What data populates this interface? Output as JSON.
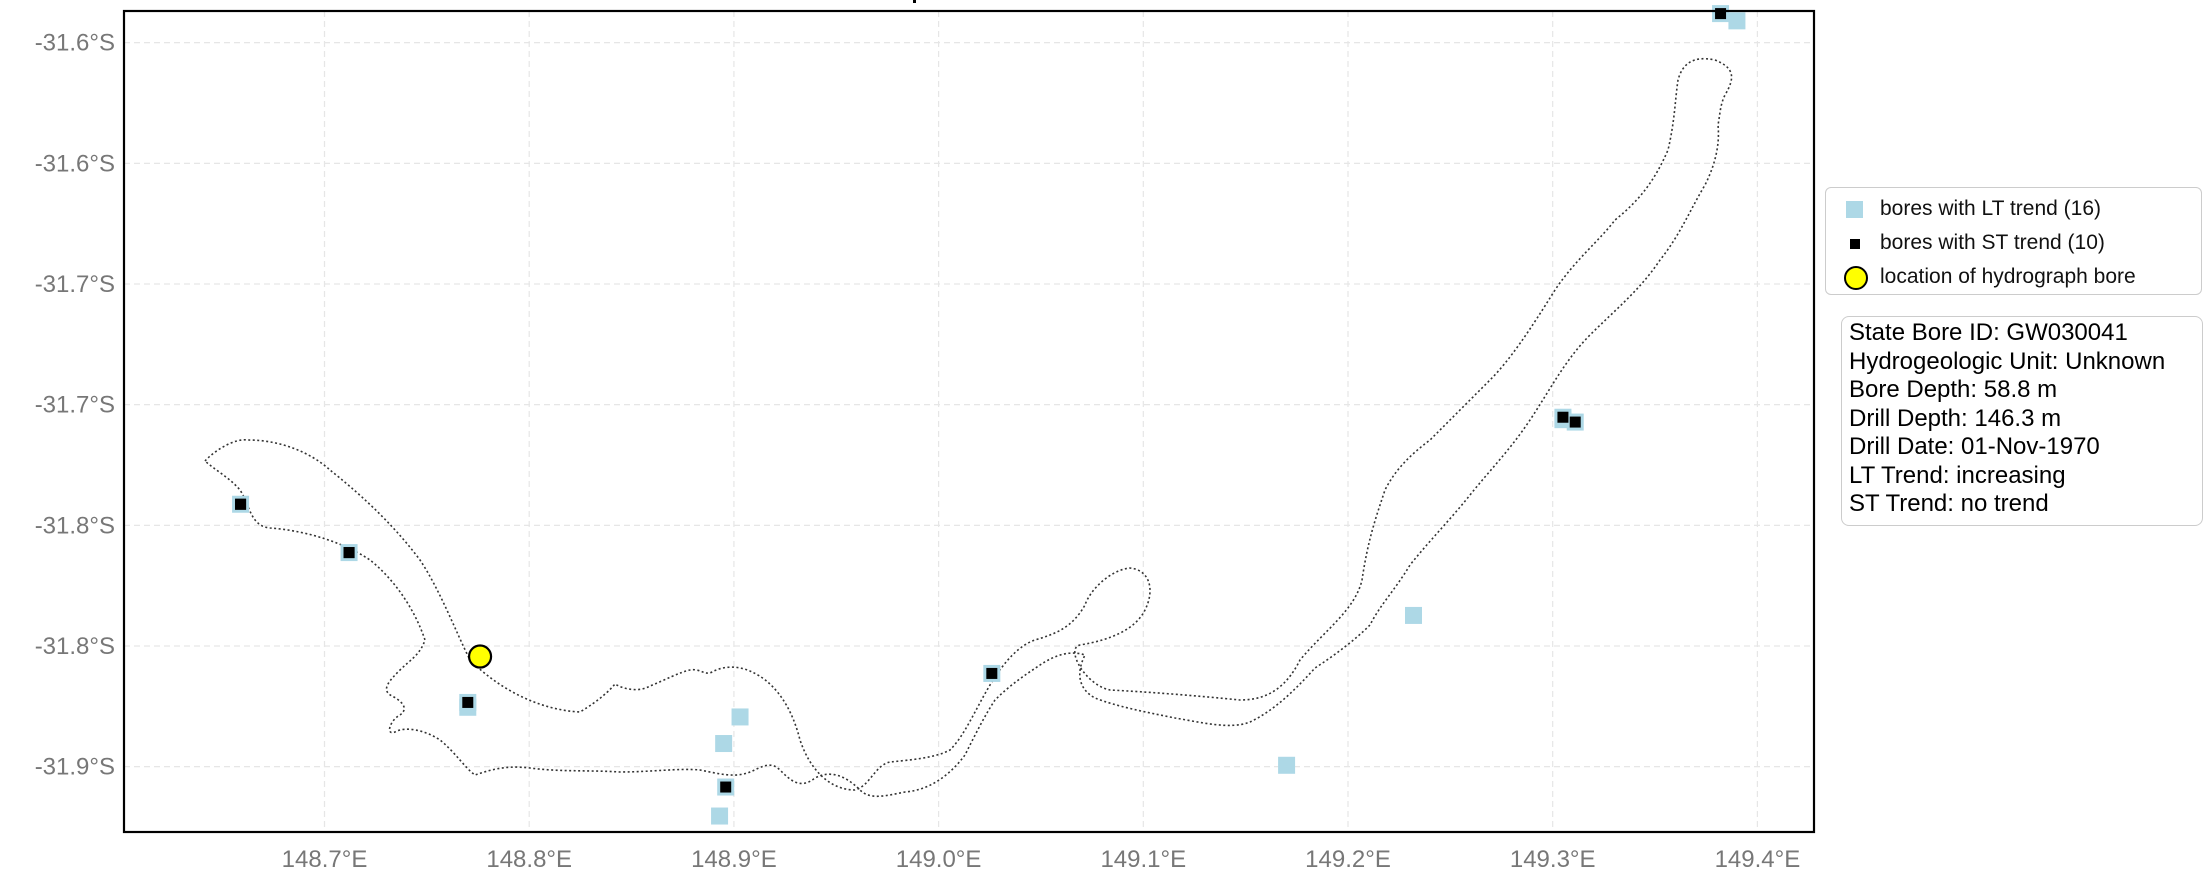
{
  "map": {
    "y_ticks": [
      "-31.6°S",
      "-31.6°S",
      "-31.7°S",
      "-31.7°S",
      "-31.8°S",
      "-31.8°S",
      "-31.9°S"
    ],
    "x_ticks": [
      "148.7°E",
      "148.8°E",
      "148.9°E",
      "149.0°E",
      "149.1°E",
      "149.2°E",
      "149.3°E",
      "149.4°E"
    ],
    "grid": true,
    "outline_style": "dotted",
    "colors": {
      "lt_marker": "#add8e6",
      "st_marker": "#000000",
      "hydrograph_marker": "#ffff00",
      "outline": "#333333",
      "grid": "#e6e6e6"
    },
    "lt_bores": [
      {
        "lon": 148.659,
        "lat": -31.751
      },
      {
        "lon": 148.712,
        "lat": -31.771
      },
      {
        "lon": 148.77,
        "lat": -31.833
      },
      {
        "lon": 148.893,
        "lat": -31.88
      },
      {
        "lon": 148.896,
        "lat": -31.868
      },
      {
        "lon": 148.895,
        "lat": -31.85
      },
      {
        "lon": 148.903,
        "lat": -31.839
      },
      {
        "lon": 149.026,
        "lat": -31.821
      },
      {
        "lon": 149.17,
        "lat": -31.859
      },
      {
        "lon": 149.232,
        "lat": -31.797
      },
      {
        "lon": 149.305,
        "lat": -31.715
      },
      {
        "lon": 149.311,
        "lat": -31.717
      },
      {
        "lon": 149.382,
        "lat": -31.548
      },
      {
        "lon": 149.39,
        "lat": -31.551
      },
      {
        "lon": 148.77,
        "lat": -31.835
      },
      {
        "lon": 149.305,
        "lat": -31.716
      }
    ],
    "st_bores": [
      {
        "lon": 148.659,
        "lat": -31.751
      },
      {
        "lon": 148.712,
        "lat": -31.771
      },
      {
        "lon": 148.77,
        "lat": -31.833
      },
      {
        "lon": 148.896,
        "lat": -31.868
      },
      {
        "lon": 149.026,
        "lat": -31.821
      },
      {
        "lon": 149.305,
        "lat": -31.715
      },
      {
        "lon": 149.311,
        "lat": -31.717
      },
      {
        "lon": 149.382,
        "lat": -31.548
      },
      {
        "lon": 148.659,
        "lat": -31.751
      },
      {
        "lon": 148.712,
        "lat": -31.771
      }
    ],
    "hydrograph_bore": {
      "lon": 148.776,
      "lat": -31.814
    }
  },
  "legend": {
    "items": [
      {
        "label": "bores with LT trend (16)",
        "icon": "light-blue-square"
      },
      {
        "label": "bores with ST trend (10)",
        "icon": "black-square"
      },
      {
        "label": "location of hydrograph bore",
        "icon": "yellow-circle"
      }
    ]
  },
  "info": {
    "lines": [
      "State Bore ID: GW030041",
      "Hydrogeologic Unit: Unknown",
      "Bore Depth: 58.8 m",
      "Drill Depth: 146.3 m",
      "Drill Date: 01-Nov-1970",
      "LT Trend: increasing",
      "ST Trend: no trend"
    ]
  }
}
